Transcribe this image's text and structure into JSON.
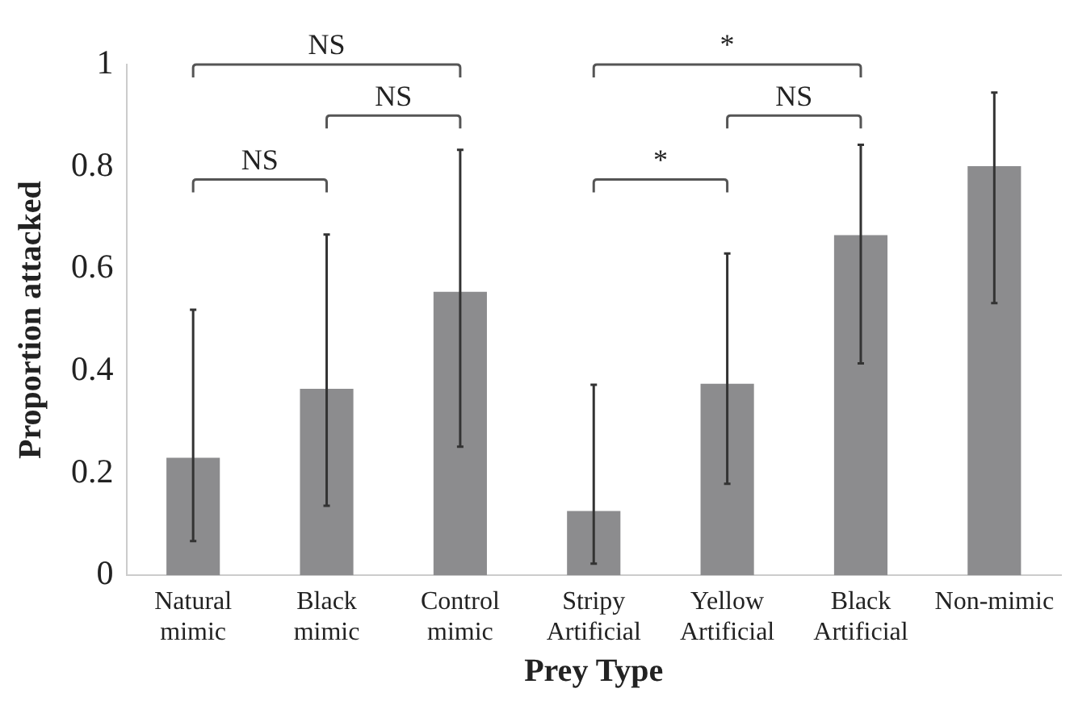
{
  "chart_data": {
    "type": "bar",
    "xlabel": "Prey Type",
    "ylabel": "Proportion attacked",
    "categories": [
      "Natural mimic",
      "Black mimic",
      "Control mimic",
      "Stripy Artificial",
      "Yellow Artificial",
      "Black Artificial",
      "Non-mimic"
    ],
    "values": [
      0.23,
      0.365,
      0.555,
      0.126,
      0.375,
      0.666,
      0.801
    ],
    "errors": [
      [
        0.067,
        0.52
      ],
      [
        0.136,
        0.667
      ],
      [
        0.252,
        0.833
      ],
      [
        0.023,
        0.373
      ],
      [
        0.179,
        0.63
      ],
      [
        0.415,
        0.843
      ],
      [
        0.533,
        0.945
      ]
    ],
    "color": "#8c8c8e",
    "ylim": [
      0,
      1
    ],
    "yticks": [
      0,
      0.2,
      0.4,
      0.6,
      0.8,
      1
    ],
    "grid": false,
    "legend": false,
    "annotations": [
      "NS",
      "NS",
      "NS",
      "*",
      "NS",
      "*"
    ]
  }
}
